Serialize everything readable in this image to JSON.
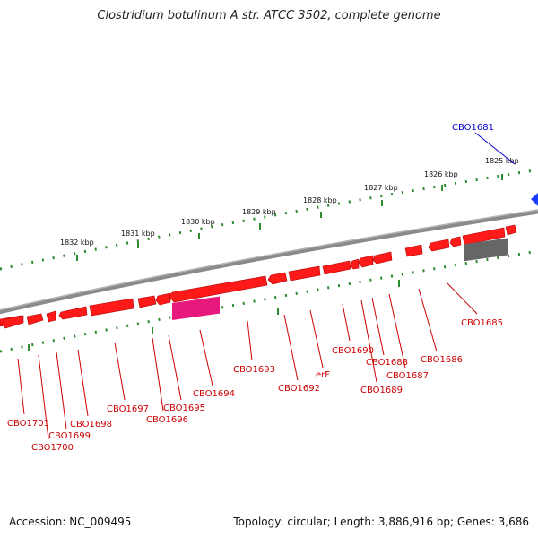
{
  "title": "Clostridium botulinum A str. ATCC 3502, complete genome",
  "footer": {
    "accession": "Accession: NC_009495",
    "summary": "Topology: circular; Length: 3,886,916 bp; Genes: 3,686"
  },
  "colors": {
    "backbone": "#8a8a8a",
    "gene_forward": "#ff1a1a",
    "gene_pink": "#e8197d",
    "gene_grey": "#666666",
    "ruler": "#2e8b2e",
    "label_red": "#cc0000",
    "label_blue": "#0000cc"
  },
  "ruler_labels": [
    "1832 kbp",
    "1831 kbp",
    "1830 kbp",
    "1829 kbp",
    "1828 kbp",
    "1827 kbp",
    "1826 kbp",
    "1825 kbp"
  ],
  "gene_labels": [
    {
      "name": "CBO1681",
      "color": "blue"
    },
    {
      "name": "CBO1685",
      "color": "red"
    },
    {
      "name": "CBO1686",
      "color": "red"
    },
    {
      "name": "CBO1687",
      "color": "red"
    },
    {
      "name": "CBO1688",
      "color": "red"
    },
    {
      "name": "CBO1689",
      "color": "red"
    },
    {
      "name": "CBO1690",
      "color": "red"
    },
    {
      "name": "erF",
      "color": "red"
    },
    {
      "name": "CBO1692",
      "color": "red"
    },
    {
      "name": "CBO1693",
      "color": "red"
    },
    {
      "name": "CBO1694",
      "color": "red"
    },
    {
      "name": "CBO1695",
      "color": "red"
    },
    {
      "name": "CBO1696",
      "color": "red"
    },
    {
      "name": "CBO1697",
      "color": "red"
    },
    {
      "name": "CBO1698",
      "color": "red"
    },
    {
      "name": "CBO1699",
      "color": "red"
    },
    {
      "name": "CBO1700",
      "color": "red"
    },
    {
      "name": "CBO1701",
      "color": "red"
    }
  ]
}
